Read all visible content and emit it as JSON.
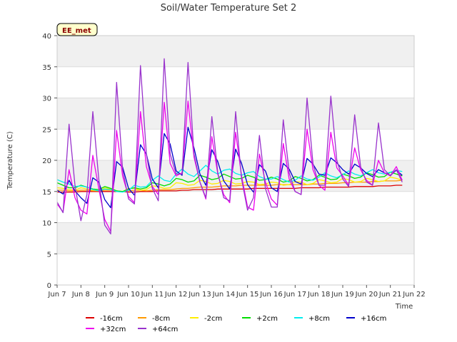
{
  "chart_data": {
    "type": "line",
    "title": "Soil/Water Temperature Set 2",
    "xlabel": "Time",
    "ylabel": "Temperature (C)",
    "site_label": "EE_met",
    "xlim": [
      "Jun 7",
      "Jun 22"
    ],
    "ylim": [
      0,
      40
    ],
    "x_ticks": [
      "Jun 7",
      "Jun 8",
      "Jun 9",
      "Jun 10",
      "Jun 11",
      "Jun 12",
      "Jun 13",
      "Jun 14",
      "Jun 15",
      "Jun 16",
      "Jun 17",
      "Jun 18",
      "Jun 19",
      "Jun 20",
      "Jun 21",
      "Jun 22"
    ],
    "y_ticks": [
      0,
      5,
      10,
      15,
      20,
      25,
      30,
      35,
      40
    ],
    "grid": "horizontal bands",
    "legend_position": "bottom",
    "x_hours": [
      0,
      6,
      12,
      18,
      24,
      30,
      36,
      42,
      48,
      54,
      60,
      66,
      72,
      78,
      84,
      90,
      96,
      102,
      108,
      114,
      120,
      126,
      132,
      138,
      144,
      150,
      156,
      162,
      168,
      174,
      180,
      186,
      192,
      198,
      204,
      210,
      216,
      222,
      228,
      234,
      240,
      246,
      252,
      258,
      264,
      270,
      276,
      282,
      288,
      294,
      300,
      306,
      312,
      318,
      324,
      330,
      336,
      342,
      348
    ],
    "series": [
      {
        "name": "-16cm",
        "color": "#dd0000",
        "values": [
          14.9,
          14.9,
          14.9,
          14.9,
          15.0,
          15.0,
          15.0,
          15.0,
          15.0,
          15.0,
          15.0,
          15.0,
          14.9,
          14.9,
          15.0,
          15.0,
          15.0,
          15.1,
          15.1,
          15.1,
          15.1,
          15.2,
          15.2,
          15.3,
          15.3,
          15.3,
          15.3,
          15.4,
          15.4,
          15.4,
          15.4,
          15.4,
          15.4,
          15.5,
          15.5,
          15.5,
          15.5,
          15.5,
          15.5,
          15.5,
          15.5,
          15.6,
          15.6,
          15.6,
          15.6,
          15.7,
          15.7,
          15.7,
          15.7,
          15.7,
          15.8,
          15.8,
          15.8,
          15.8,
          15.9,
          15.9,
          15.9,
          16.0,
          16.0
        ]
      },
      {
        "name": "-8cm",
        "color": "#ff9900",
        "values": [
          15.2,
          15.2,
          15.1,
          15.1,
          15.2,
          15.2,
          15.1,
          15.1,
          15.2,
          15.2,
          15.1,
          15.0,
          15.1,
          15.2,
          15.2,
          15.1,
          15.2,
          15.3,
          15.3,
          15.3,
          15.4,
          15.5,
          15.5,
          15.6,
          15.7,
          15.7,
          15.7,
          15.8,
          15.9,
          15.9,
          15.9,
          16.0,
          16.0,
          16.0,
          16.0,
          16.0,
          16.0,
          16.1,
          16.1,
          16.1,
          16.1,
          16.1,
          16.1,
          16.2,
          16.2,
          16.3,
          16.3,
          16.3,
          16.4,
          16.4,
          16.5,
          16.5,
          16.5,
          16.6,
          16.6,
          16.7,
          16.7,
          16.7,
          16.8
        ]
      },
      {
        "name": "-2cm",
        "color": "#ffee00",
        "values": [
          15.6,
          15.5,
          15.3,
          15.2,
          15.6,
          15.4,
          15.2,
          15.1,
          15.6,
          15.4,
          15.1,
          15.0,
          15.5,
          15.5,
          15.2,
          15.3,
          15.9,
          15.8,
          15.5,
          15.6,
          16.4,
          16.3,
          16.0,
          16.1,
          16.8,
          16.6,
          16.2,
          16.3,
          16.8,
          16.6,
          16.2,
          16.3,
          16.6,
          16.5,
          16.1,
          16.2,
          16.5,
          16.4,
          16.0,
          16.1,
          16.6,
          16.5,
          16.1,
          16.3,
          16.9,
          16.7,
          16.4,
          16.5,
          17.1,
          16.9,
          16.5,
          16.6,
          17.1,
          16.9,
          16.6,
          16.7,
          17.3,
          17.1,
          16.8
        ]
      },
      {
        "name": "+2cm",
        "color": "#00dd00",
        "values": [
          16.4,
          16.0,
          15.6,
          15.6,
          16.0,
          15.7,
          15.4,
          15.3,
          15.8,
          15.5,
          15.1,
          15.0,
          15.4,
          15.6,
          15.4,
          15.6,
          16.4,
          16.2,
          15.9,
          16.2,
          17.1,
          16.9,
          16.5,
          16.7,
          17.6,
          17.3,
          16.9,
          17.1,
          17.8,
          17.4,
          17.0,
          17.1,
          17.6,
          17.3,
          16.8,
          16.9,
          17.3,
          17.0,
          16.5,
          16.7,
          17.4,
          17.1,
          16.7,
          16.9,
          17.6,
          17.3,
          16.9,
          17.0,
          17.8,
          17.5,
          17.1,
          17.3,
          18.0,
          17.7,
          17.3,
          17.4,
          18.1,
          17.8,
          17.5
        ]
      },
      {
        "name": "+8cm",
        "color": "#00eeee",
        "values": [
          16.9,
          16.5,
          16.2,
          15.8,
          15.9,
          15.7,
          15.3,
          15.1,
          15.4,
          15.3,
          15.0,
          14.9,
          15.2,
          16.0,
          15.7,
          15.8,
          16.8,
          17.5,
          16.8,
          16.6,
          17.8,
          18.6,
          17.8,
          17.4,
          18.3,
          19.2,
          18.3,
          17.8,
          18.4,
          18.6,
          17.9,
          17.6,
          18.0,
          18.2,
          17.4,
          17.0,
          17.0,
          17.4,
          16.9,
          16.5,
          16.8,
          17.5,
          17.0,
          16.8,
          17.3,
          18.0,
          17.5,
          17.2,
          17.7,
          18.3,
          17.8,
          17.5,
          18.0,
          18.5,
          18.0,
          17.8,
          18.1,
          18.4,
          18.2
        ]
      },
      {
        "name": "+16cm",
        "color": "#0000cc",
        "values": [
          15.2,
          14.6,
          16.8,
          15.1,
          14.0,
          13.1,
          17.2,
          16.5,
          13.7,
          12.4,
          19.8,
          18.9,
          15.5,
          14.4,
          22.5,
          21.0,
          17.0,
          15.6,
          24.3,
          22.6,
          18.3,
          17.6,
          25.3,
          22.0,
          17.8,
          16.0,
          21.7,
          19.8,
          16.7,
          15.4,
          21.8,
          19.5,
          16.1,
          14.9,
          19.3,
          18.3,
          15.6,
          15.0,
          19.5,
          18.6,
          16.6,
          16.2,
          20.3,
          19.4,
          17.8,
          17.6,
          20.4,
          19.6,
          18.5,
          17.8,
          19.4,
          18.8,
          17.9,
          17.4,
          18.5,
          18.0,
          17.6,
          18.4,
          17.6
        ]
      },
      {
        "name": "+32cm",
        "color": "#ee00ee",
        "values": [
          13.0,
          11.7,
          18.5,
          14.0,
          12.0,
          11.4,
          20.8,
          15.5,
          10.5,
          8.6,
          24.8,
          17.5,
          14.2,
          13.2,
          27.8,
          19.0,
          15.8,
          14.5,
          29.3,
          19.5,
          17.5,
          18.0,
          29.5,
          20.5,
          16.5,
          13.8,
          23.8,
          17.8,
          14.5,
          13.2,
          24.5,
          17.5,
          12.5,
          12.0,
          21.0,
          16.5,
          13.8,
          12.8,
          22.7,
          17.0,
          15.0,
          14.5,
          25.0,
          18.5,
          16.0,
          15.2,
          24.5,
          18.8,
          17.5,
          16.0,
          22.0,
          18.5,
          16.8,
          16.0,
          20.0,
          18.0,
          17.5,
          19.0,
          16.8
        ]
      },
      {
        "name": "+64cm",
        "color": "#9933cc",
        "values": [
          13.3,
          11.6,
          25.8,
          16.0,
          10.3,
          14.5,
          27.8,
          17.0,
          9.6,
          8.2,
          32.5,
          18.5,
          13.8,
          13.0,
          35.2,
          21.0,
          15.5,
          13.5,
          36.3,
          21.0,
          17.8,
          17.8,
          35.7,
          21.0,
          16.5,
          14.0,
          27.0,
          18.0,
          14.0,
          13.5,
          27.8,
          17.0,
          12.0,
          14.0,
          24.0,
          15.5,
          12.5,
          12.5,
          26.5,
          18.0,
          15.0,
          14.5,
          30.0,
          19.5,
          16.0,
          16.0,
          30.3,
          20.0,
          17.0,
          15.8,
          27.3,
          19.0,
          16.5,
          16.0,
          26.0,
          18.5,
          17.5,
          18.5,
          16.5
        ]
      }
    ]
  }
}
